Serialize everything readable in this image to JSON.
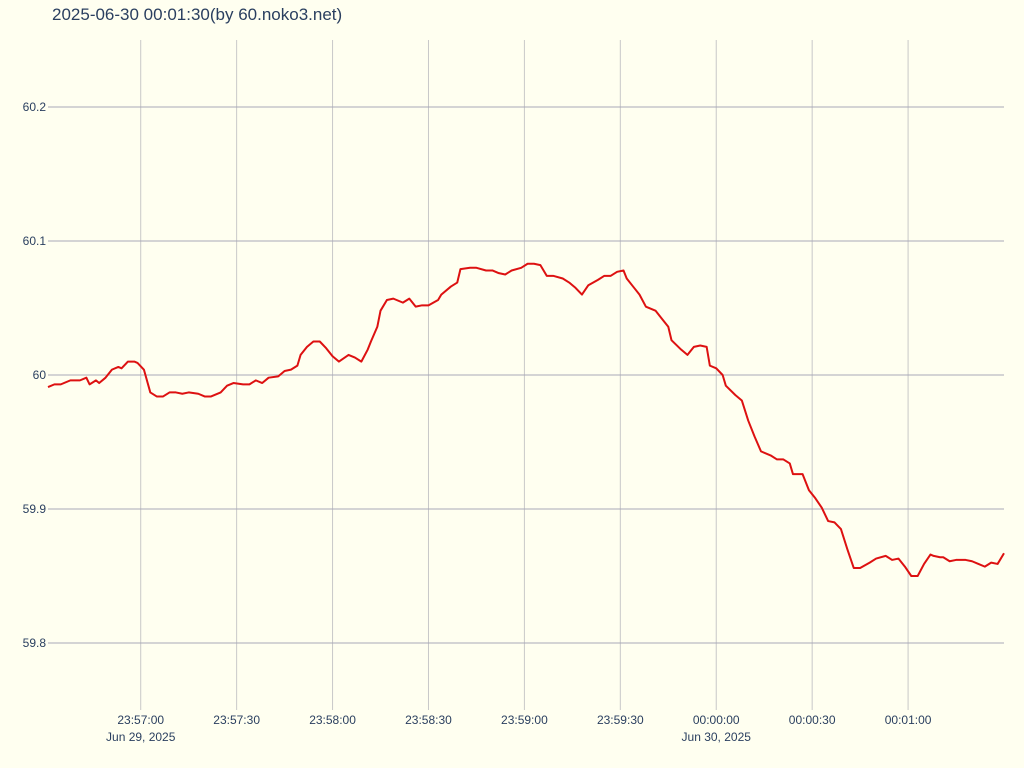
{
  "chart_data": {
    "type": "line",
    "title": "2025-06-30 00:01:30(by 60.noko3.net)",
    "xlim": [
      "2025-06-29T23:56:31",
      "2025-06-30T00:01:30"
    ],
    "ylim": [
      59.75,
      60.25
    ],
    "yticks": [
      59.8,
      59.9,
      {
        "value": 60,
        "label": "60"
      },
      60.1,
      60.2
    ],
    "xticks": [
      {
        "value": "2025-06-29T23:57:00",
        "label": "23:57:00",
        "sublabel": "Jun 29, 2025"
      },
      {
        "value": "2025-06-29T23:57:30",
        "label": "23:57:30"
      },
      {
        "value": "2025-06-29T23:58:00",
        "label": "23:58:00"
      },
      {
        "value": "2025-06-29T23:58:30",
        "label": "23:58:30"
      },
      {
        "value": "2025-06-29T23:59:00",
        "label": "23:59:00"
      },
      {
        "value": "2025-06-29T23:59:30",
        "label": "23:59:30"
      },
      {
        "value": "2025-06-30T00:00:00",
        "label": "00:00:00",
        "sublabel": "Jun 30, 2025"
      },
      {
        "value": "2025-06-30T00:00:30",
        "label": "00:00:30"
      },
      {
        "value": "2025-06-30T00:01:00",
        "label": "00:01:00"
      }
    ],
    "grid": true,
    "series": [
      {
        "color": "#dd1111",
        "x": [
          "2025-06-29T23:56:31",
          "2025-06-29T23:56:33",
          "2025-06-29T23:56:35",
          "2025-06-29T23:56:38",
          "2025-06-29T23:56:41",
          "2025-06-29T23:56:43",
          "2025-06-29T23:56:44",
          "2025-06-29T23:56:46",
          "2025-06-29T23:56:47",
          "2025-06-29T23:56:49",
          "2025-06-29T23:56:51",
          "2025-06-29T23:56:53",
          "2025-06-29T23:56:54",
          "2025-06-29T23:56:56",
          "2025-06-29T23:56:58",
          "2025-06-29T23:56:59",
          "2025-06-29T23:57:01",
          "2025-06-29T23:57:03",
          "2025-06-29T23:57:05",
          "2025-06-29T23:57:07",
          "2025-06-29T23:57:09",
          "2025-06-29T23:57:11",
          "2025-06-29T23:57:13",
          "2025-06-29T23:57:15",
          "2025-06-29T23:57:18",
          "2025-06-29T23:57:20",
          "2025-06-29T23:57:22",
          "2025-06-29T23:57:25",
          "2025-06-29T23:57:27",
          "2025-06-29T23:57:29",
          "2025-06-29T23:57:32",
          "2025-06-29T23:57:34",
          "2025-06-29T23:57:36",
          "2025-06-29T23:57:38",
          "2025-06-29T23:57:40",
          "2025-06-29T23:57:43",
          "2025-06-29T23:57:45",
          "2025-06-29T23:57:47",
          "2025-06-29T23:57:49",
          "2025-06-29T23:57:50",
          "2025-06-29T23:57:52",
          "2025-06-29T23:57:54",
          "2025-06-29T23:57:56",
          "2025-06-29T23:57:58",
          "2025-06-29T23:58:00",
          "2025-06-29T23:58:02",
          "2025-06-29T23:58:05",
          "2025-06-29T23:58:07",
          "2025-06-29T23:58:09",
          "2025-06-29T23:58:11",
          "2025-06-29T23:58:12",
          "2025-06-29T23:58:14",
          "2025-06-29T23:58:15",
          "2025-06-29T23:58:17",
          "2025-06-29T23:58:19",
          "2025-06-29T23:58:22",
          "2025-06-29T23:58:24",
          "2025-06-29T23:58:26",
          "2025-06-29T23:58:28",
          "2025-06-29T23:58:30",
          "2025-06-29T23:58:33",
          "2025-06-29T23:58:34",
          "2025-06-29T23:58:37",
          "2025-06-29T23:58:39",
          "2025-06-29T23:58:40",
          "2025-06-29T23:58:43",
          "2025-06-29T23:58:45",
          "2025-06-29T23:58:48",
          "2025-06-29T23:58:50",
          "2025-06-29T23:58:52",
          "2025-06-29T23:58:54",
          "2025-06-29T23:58:56",
          "2025-06-29T23:58:59",
          "2025-06-29T23:59:01",
          "2025-06-29T23:59:03",
          "2025-06-29T23:59:05",
          "2025-06-29T23:59:07",
          "2025-06-29T23:59:09",
          "2025-06-29T23:59:12",
          "2025-06-29T23:59:14",
          "2025-06-29T23:59:16",
          "2025-06-29T23:59:18",
          "2025-06-29T23:59:20",
          "2025-06-29T23:59:23",
          "2025-06-29T23:59:25",
          "2025-06-29T23:59:27",
          "2025-06-29T23:59:29",
          "2025-06-29T23:59:31",
          "2025-06-29T23:59:32",
          "2025-06-29T23:59:34",
          "2025-06-29T23:59:36",
          "2025-06-29T23:59:38",
          "2025-06-29T23:59:41",
          "2025-06-29T23:59:43",
          "2025-06-29T23:59:45",
          "2025-06-29T23:59:46",
          "2025-06-29T23:59:49",
          "2025-06-29T23:59:51",
          "2025-06-29T23:59:53",
          "2025-06-29T23:59:55",
          "2025-06-29T23:59:57",
          "2025-06-29T23:59:58",
          "2025-06-30T00:00:00",
          "2025-06-30T00:00:02",
          "2025-06-30T00:00:03",
          "2025-06-30T00:00:06",
          "2025-06-30T00:00:08",
          "2025-06-30T00:00:10",
          "2025-06-30T00:00:12",
          "2025-06-30T00:00:14",
          "2025-06-30T00:00:17",
          "2025-06-30T00:00:19",
          "2025-06-30T00:00:21",
          "2025-06-30T00:00:23",
          "2025-06-30T00:00:24",
          "2025-06-30T00:00:27",
          "2025-06-30T00:00:29",
          "2025-06-30T00:00:31",
          "2025-06-30T00:00:33",
          "2025-06-30T00:00:35",
          "2025-06-30T00:00:37",
          "2025-06-30T00:00:39",
          "2025-06-30T00:00:41",
          "2025-06-30T00:00:43",
          "2025-06-30T00:00:45",
          "2025-06-30T00:00:48",
          "2025-06-30T00:00:50",
          "2025-06-30T00:00:53",
          "2025-06-30T00:00:55",
          "2025-06-30T00:00:57",
          "2025-06-30T00:00:59",
          "2025-06-30T00:01:01",
          "2025-06-30T00:01:03",
          "2025-06-30T00:01:05",
          "2025-06-30T00:01:07",
          "2025-06-30T00:01:08",
          "2025-06-30T00:01:10",
          "2025-06-30T00:01:11",
          "2025-06-30T00:01:13",
          "2025-06-30T00:01:15",
          "2025-06-30T00:01:18",
          "2025-06-30T00:01:20",
          "2025-06-30T00:01:22",
          "2025-06-30T00:01:24",
          "2025-06-30T00:01:26",
          "2025-06-30T00:01:28",
          "2025-06-30T00:01:30"
        ],
        "values": [
          59.991,
          59.993,
          59.993,
          59.996,
          59.996,
          59.998,
          59.993,
          59.996,
          59.994,
          59.998,
          60.004,
          60.006,
          60.005,
          60.01,
          60.01,
          60.009,
          60.004,
          59.987,
          59.984,
          59.984,
          59.987,
          59.987,
          59.986,
          59.987,
          59.986,
          59.984,
          59.984,
          59.987,
          59.992,
          59.994,
          59.993,
          59.993,
          59.996,
          59.994,
          59.998,
          59.999,
          60.003,
          60.004,
          60.007,
          60.015,
          60.021,
          60.025,
          60.025,
          60.02,
          60.014,
          60.01,
          60.015,
          60.013,
          60.01,
          60.019,
          60.025,
          60.036,
          60.048,
          60.056,
          60.057,
          60.054,
          60.057,
          60.051,
          60.052,
          60.052,
          60.056,
          60.06,
          60.066,
          60.069,
          60.079,
          60.08,
          60.08,
          60.078,
          60.078,
          60.076,
          60.075,
          60.078,
          60.08,
          60.083,
          60.083,
          60.082,
          60.074,
          60.074,
          60.072,
          60.069,
          60.065,
          60.06,
          60.067,
          60.071,
          60.074,
          60.074,
          60.077,
          60.078,
          60.072,
          60.066,
          60.06,
          60.051,
          60.048,
          60.042,
          60.036,
          60.026,
          60.019,
          60.015,
          60.021,
          60.022,
          60.021,
          60.007,
          60.005,
          60.0,
          59.992,
          59.985,
          59.981,
          59.966,
          59.954,
          59.943,
          59.94,
          59.937,
          59.937,
          59.934,
          59.926,
          59.926,
          59.914,
          59.908,
          59.901,
          59.891,
          59.89,
          59.885,
          59.87,
          59.856,
          59.856,
          59.86,
          59.863,
          59.865,
          59.862,
          59.863,
          59.857,
          59.85,
          59.85,
          59.859,
          59.866,
          59.865,
          59.864,
          59.864,
          59.861,
          59.862,
          59.862,
          59.861,
          59.859,
          59.857,
          59.86,
          59.859,
          59.867
        ]
      }
    ]
  }
}
